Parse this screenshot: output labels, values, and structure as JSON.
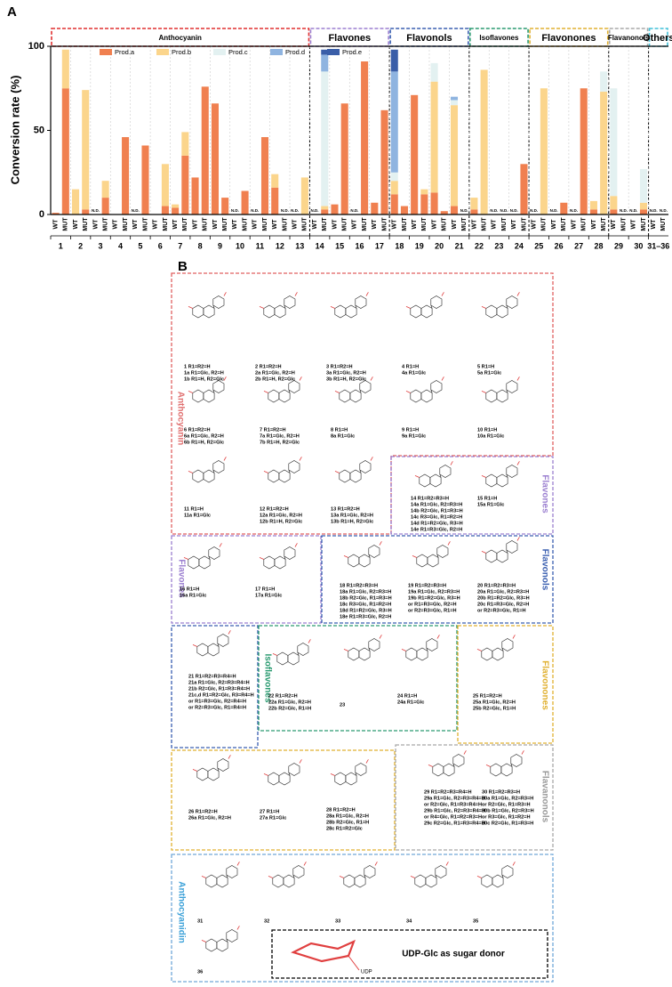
{
  "chart_data": {
    "type": "stacked_bar",
    "panel_label": "A",
    "ylabel": "Conversion rate (%)",
    "ylim": [
      0,
      100
    ],
    "yticks": [
      0,
      50,
      100
    ],
    "legend": "top",
    "categories": [
      "WT",
      "MUT",
      "WT",
      "MUT",
      "WT",
      "MUT",
      "WT",
      "MUT",
      "WT",
      "MUT",
      "WT",
      "MUT",
      "WT",
      "MUT",
      "WT",
      "MUT",
      "WT",
      "MUT",
      "WT",
      "MUT",
      "WT",
      "MUT",
      "WT",
      "MUT",
      "WT",
      "MUT",
      "WT",
      "MUT",
      "WT",
      "MUT",
      "WT",
      "MUT",
      "WT",
      "MUT",
      "WT",
      "MUT",
      "WT",
      "MUT",
      "WT",
      "MUT",
      "WT",
      "MUT",
      "WT",
      "MUT",
      "WT",
      "MUT",
      "WT",
      "MUT",
      "WT",
      "MUT",
      "WT",
      "MUT",
      "WT",
      "MUT",
      "WT",
      "MUT",
      "WT",
      "MUT",
      "WT",
      "MUT",
      "WT",
      "MUT"
    ],
    "groups": [
      "1",
      "2",
      "3",
      "4",
      "5",
      "6",
      "7",
      "8",
      "9",
      "10",
      "11",
      "12",
      "13",
      "14",
      "15",
      "16",
      "17",
      "18",
      "19",
      "20",
      "21",
      "22",
      "23",
      "24",
      "25",
      "26",
      "27",
      "28",
      "29",
      "30",
      "31–36"
    ],
    "classes": [
      {
        "name": "Anthocyanin",
        "from": "1",
        "to": "13",
        "color": "#e03030"
      },
      {
        "name": "Flavones",
        "from": "14",
        "to": "17",
        "color": "#9b7fd0"
      },
      {
        "name": "Flavonols",
        "from": "18",
        "to": "21",
        "color": "#3a5fb0"
      },
      {
        "name": "Isoflavones",
        "from": "22",
        "to": "24",
        "color": "#2a9a70"
      },
      {
        "name": "Flavonones",
        "from": "25",
        "to": "28",
        "color": "#e0b030"
      },
      {
        "name": "Flavanonols",
        "from": "29",
        "to": "30",
        "color": "#a8a8a8"
      },
      {
        "name": "Others",
        "from": "31–36",
        "to": "31–36",
        "color": "#40c0d8"
      }
    ],
    "series": [
      {
        "name": "Prod.a",
        "color": "#f08050",
        "values": [
          1,
          75,
          0,
          3,
          0,
          10,
          0,
          46,
          0,
          41,
          0,
          5,
          4,
          35,
          22,
          76,
          66,
          10,
          0,
          14,
          0,
          46,
          16,
          0,
          0,
          0,
          0,
          3,
          6,
          66,
          0,
          91,
          7,
          62,
          12,
          5,
          71,
          12,
          13,
          2,
          5,
          0,
          3,
          0,
          0,
          0,
          0,
          30,
          0,
          0,
          0,
          7,
          0,
          75,
          3,
          0,
          3,
          0,
          0,
          3,
          0,
          0
        ]
      },
      {
        "name": "Prod.b",
        "color": "#fbd58c",
        "values": [
          0,
          23,
          15,
          71,
          0,
          10,
          0,
          0,
          0,
          0,
          0,
          25,
          2,
          14,
          0,
          0,
          0,
          0,
          0,
          0,
          0,
          0,
          8,
          0,
          0,
          22,
          0,
          2,
          0,
          0,
          0,
          0,
          0,
          0,
          8,
          0,
          0,
          3,
          66,
          0,
          60,
          0,
          7,
          86,
          0,
          0,
          0,
          0,
          0,
          75,
          0,
          0,
          0,
          0,
          5,
          73,
          8,
          0,
          0,
          4,
          0,
          0
        ]
      },
      {
        "name": "Prod.c",
        "color": "#e3f1f1",
        "values": [
          0,
          0,
          0,
          0,
          0,
          0,
          0,
          0,
          0,
          0,
          0,
          0,
          0,
          0,
          0,
          0,
          0,
          0,
          0,
          0,
          0,
          0,
          0,
          0,
          0,
          0,
          0,
          80,
          0,
          0,
          0,
          0,
          0,
          0,
          5,
          0,
          0,
          0,
          11,
          0,
          3,
          0,
          0,
          0,
          0,
          0,
          0,
          0,
          0,
          0,
          0,
          0,
          0,
          0,
          0,
          12,
          64,
          0,
          0,
          20,
          0,
          0
        ]
      },
      {
        "name": "Prod.d",
        "color": "#8fb4e0",
        "values": [
          0,
          0,
          0,
          0,
          0,
          0,
          0,
          0,
          0,
          0,
          0,
          0,
          0,
          0,
          0,
          0,
          0,
          0,
          0,
          0,
          0,
          0,
          0,
          0,
          0,
          0,
          0,
          10,
          0,
          0,
          0,
          0,
          0,
          0,
          60,
          0,
          0,
          0,
          0,
          0,
          2,
          0,
          0,
          0,
          0,
          0,
          0,
          0,
          0,
          0,
          0,
          0,
          0,
          0,
          0,
          0,
          0,
          0,
          0,
          0,
          0,
          0
        ]
      },
      {
        "name": "Prod.e",
        "color": "#3a5ea8",
        "values": [
          0,
          0,
          0,
          0,
          0,
          0,
          0,
          0,
          0,
          0,
          0,
          0,
          0,
          0,
          0,
          0,
          0,
          0,
          0,
          0,
          0,
          0,
          0,
          0,
          0,
          0,
          0,
          3,
          0,
          0,
          0,
          0,
          0,
          0,
          13,
          0,
          0,
          0,
          0,
          0,
          0,
          0,
          0,
          0,
          0,
          0,
          0,
          0,
          0,
          0,
          0,
          0,
          0,
          0,
          0,
          0,
          0,
          0,
          0,
          0,
          0,
          0
        ]
      }
    ],
    "bar_notes": [
      null,
      null,
      null,
      null,
      "N.D.",
      null,
      null,
      null,
      "N.D.",
      null,
      null,
      null,
      null,
      null,
      null,
      null,
      null,
      null,
      "N.D.",
      null,
      "N.D.",
      null,
      null,
      "N.D.",
      "N.D.",
      null,
      "N.D.",
      null,
      null,
      null,
      "N.D.",
      null,
      null,
      null,
      null,
      null,
      null,
      null,
      null,
      null,
      null,
      "N.D.",
      null,
      null,
      "N.D.",
      "N.D.",
      "N.D.",
      null,
      "N.D.",
      null,
      "N.D.",
      null,
      "N.D.",
      null,
      null,
      null,
      null,
      "N.D.",
      "N.D.",
      null,
      "N.D.",
      "N.D."
    ]
  },
  "structures": {
    "panel_label": "B",
    "classes": [
      "Anthocyanin",
      "Flavones",
      "Flavones",
      "Flavonols",
      "Isoflavones",
      "Flavonones",
      "Flavanonols",
      "Anthocyanidin"
    ],
    "compounds": [
      {
        "lines": [
          "1  R1=R2=H",
          "1a R1=Glc, R2=H",
          "1b R1=H, R2=Glc"
        ]
      },
      {
        "lines": [
          "2  R1=R2=H",
          "2a R1=Glc, R2=H",
          "2b R1=H, R2=Glc"
        ]
      },
      {
        "lines": [
          "3  R1=R2=H",
          "3a R1=Glc, R2=H",
          "3b R1=H, R2=Glc"
        ]
      },
      {
        "lines": [
          "4  R1=H",
          "4a R1=Glc"
        ]
      },
      {
        "lines": [
          "5  R1=H",
          "5a R1=Glc"
        ]
      },
      {
        "lines": [
          "6  R1=R2=H",
          "6a R1=Glc, R2=H",
          "6b R1=H, R2=Glc"
        ]
      },
      {
        "lines": [
          "7  R1=R2=H",
          "7a R1=Glc, R2=H",
          "7b R1=H, R2=Glc"
        ]
      },
      {
        "lines": [
          "8  R1=H",
          "8a R1=Glc"
        ]
      },
      {
        "lines": [
          "9  R1=H",
          "9a R1=Glc"
        ]
      },
      {
        "lines": [
          "10  R1=H",
          "10a R1=Glc"
        ]
      },
      {
        "lines": [
          "11  R1=H",
          "11a R1=Glc"
        ]
      },
      {
        "lines": [
          "12  R1=R2=H",
          "12a R1=Glc, R2=H",
          "12b R1=H, R2=Glc"
        ]
      },
      {
        "lines": [
          "13  R1=R2=H",
          "13a R1=Glc, R2=H",
          "13b R1=H, R2=Glc"
        ]
      },
      {
        "lines": [
          "14  R1=R2=R3=H",
          "14a R1=Glc, R2=R3=H",
          "14b R2=Glc, R1=R3=H",
          "14c R3=Glc, R1=R2=H",
          "14d R1=R2=Glc, R3=H",
          "14e R1=R3=Glc, R2=H"
        ]
      },
      {
        "lines": [
          "15  R1=H",
          "15a R1=Glc"
        ]
      },
      {
        "lines": [
          "16  R1=H",
          "16a R1=Glc"
        ]
      },
      {
        "lines": [
          "17  R1=H",
          "17a R1=Glc"
        ]
      },
      {
        "lines": [
          "18  R1=R2=R3=H",
          "18a R1=Glc, R2=R3=H",
          "18b R2=Glc, R1=R3=H",
          "18c R3=Glc, R1=R2=H",
          "18d R1=R2=Glc, R3=H",
          "18e R1=R3=Glc, R2=H"
        ]
      },
      {
        "lines": [
          "19  R1=R2=R3=H",
          "19a R1=Glc, R2=R3=H",
          "19b R1=R2=Glc, R3=H",
          "or R1=R3=Glc, R2=H",
          "or R2=R3=Glc, R1=H"
        ]
      },
      {
        "lines": [
          "20  R1=R2=R3=H",
          "20a R1=Glc, R2=R3=H",
          "20b R1=R2=Glc, R3=H",
          "20c R1=R3=Glc, R2=H",
          "or R2=R3=Glc, R1=H"
        ]
      },
      {
        "lines": [
          "21  R1=R2=R3=R4=H",
          "21a R1=Glc, R2=R3=R4=H",
          "21b R2=Glc, R1=R3=R4=H",
          "21c,d R1=R2=Glc, R3=R4=H",
          "or R1=R3=Glc, R2=R4=H",
          "or R2=R3=Glc, R1=R4=H"
        ]
      },
      {
        "lines": [
          "22  R1=R2=H",
          "22a R1=Glc, R2=H",
          "22b R2=Glc, R1=H"
        ]
      },
      {
        "lines": [
          "23"
        ]
      },
      {
        "lines": [
          "24  R1=H",
          "24a R1=Glc"
        ]
      },
      {
        "lines": [
          "25  R1=R2=H",
          "25a R1=Glc, R2=H",
          "25b R2=Glc, R1=H"
        ]
      },
      {
        "lines": [
          "26  R1=R2=H",
          "26a R1=Glc, R2=H"
        ]
      },
      {
        "lines": [
          "27  R1=H",
          "27a R1=Glc"
        ]
      },
      {
        "lines": [
          "28  R1=R2=H",
          "28a R1=Glc, R2=H",
          "28b R2=Glc, R1=H",
          "28c R1=R2=Glc"
        ]
      },
      {
        "lines": [
          "29  R1=R2=R3=R4=H",
          "29a R1=Glc, R2=R3=R4=H",
          "or R2=Glc, R1=R3=R4=H",
          "29b R1=Glc, R2=R3=R4=H",
          "or R4=Glc, R1=R2=R3=H",
          "29c R2=Glc, R1=R3=R4=H"
        ]
      },
      {
        "lines": [
          "30  R1=R2=R3=H",
          "30a R1=Glc, R2=R3=H",
          "or R2=Glc, R1=R3=H",
          "30b R1=Glc, R2=R3=H",
          "or R3=Glc, R1=R2=H",
          "30c R2=Glc, R1=R3=H"
        ]
      },
      {
        "lines": [
          "31"
        ]
      },
      {
        "lines": [
          "32"
        ]
      },
      {
        "lines": [
          "33"
        ]
      },
      {
        "lines": [
          "34"
        ]
      },
      {
        "lines": [
          "35"
        ]
      },
      {
        "lines": [
          "36"
        ]
      }
    ],
    "donor": "UDP-Glc as sugar donor",
    "donor_group": "UDP"
  }
}
